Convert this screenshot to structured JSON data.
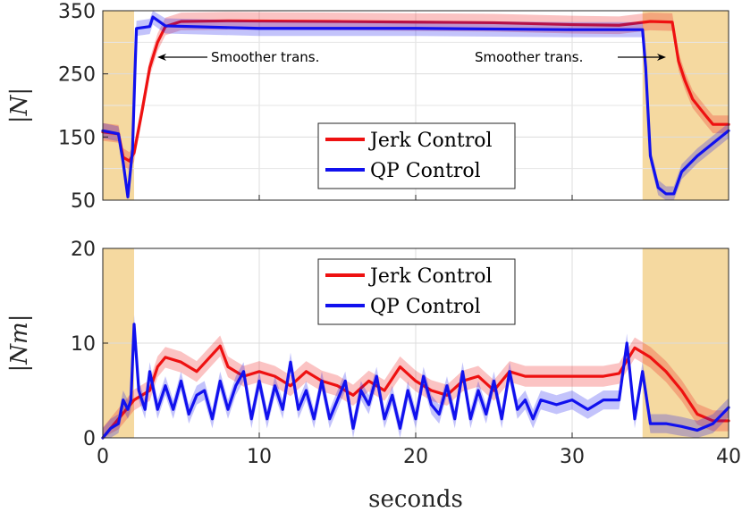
{
  "chart_data": [
    {
      "type": "line",
      "ylabel": "|N|",
      "ylim": [
        50,
        350
      ],
      "xlim": [
        0,
        40
      ],
      "yticks": [
        "50",
        "150",
        "250",
        "350"
      ],
      "ytick_values": [
        50,
        150,
        250,
        350
      ],
      "grid": true,
      "shaded_regions": [
        [
          0,
          2
        ],
        [
          34.5,
          40
        ]
      ],
      "legend": {
        "placement": "center-bottom",
        "entries": [
          "Jerk Control",
          "QP Control"
        ]
      },
      "annotations": [
        {
          "text": "Smoother trans.",
          "arrow_to_x": 3.5,
          "arrow_to_y": 305
        },
        {
          "text": "Smoother trans.",
          "arrow_to_x": 36.6,
          "arrow_to_y": 305
        }
      ],
      "series": [
        {
          "name": "Jerk Control",
          "color": "#ee1111",
          "x": [
            0,
            1,
            1.3,
            1.7,
            2,
            2.5,
            3,
            3.5,
            4,
            5,
            8,
            15,
            20,
            25,
            30,
            33,
            35,
            36.4,
            36.8,
            37.2,
            37.7,
            38.5,
            39,
            40
          ],
          "y": [
            158,
            155,
            118,
            112,
            125,
            190,
            260,
            300,
            325,
            333,
            334,
            333,
            332,
            331,
            328,
            327,
            333,
            332,
            270,
            240,
            210,
            185,
            170,
            170
          ]
        },
        {
          "name": "QP Control",
          "color": "#1111ee",
          "x": [
            0,
            1,
            1.3,
            1.6,
            1.9,
            2.05,
            2.15,
            3,
            3.2,
            4,
            10,
            20,
            30,
            34.5,
            34.7,
            35,
            35.5,
            36,
            36.5,
            37,
            38,
            39,
            40
          ],
          "y": [
            160,
            155,
            110,
            55,
            130,
            250,
            322,
            325,
            340,
            326,
            322,
            322,
            320,
            320,
            260,
            120,
            70,
            60,
            60,
            95,
            120,
            140,
            160
          ]
        }
      ]
    },
    {
      "type": "line",
      "ylabel": "|Nm|",
      "xlabel": "seconds",
      "ylim": [
        0,
        20
      ],
      "xlim": [
        0,
        40
      ],
      "yticks": [
        "0",
        "10",
        "20"
      ],
      "ytick_values": [
        0,
        10,
        20
      ],
      "xticks": [
        "0",
        "10",
        "20",
        "30",
        "40"
      ],
      "xtick_values": [
        0,
        10,
        20,
        30,
        40
      ],
      "grid": true,
      "shaded_regions": [
        [
          0,
          2
        ],
        [
          34.5,
          40
        ]
      ],
      "legend": {
        "placement": "top-center",
        "entries": [
          "Jerk Control",
          "QP Control"
        ]
      },
      "series": [
        {
          "name": "Jerk Control",
          "color": "#ee1111",
          "x": [
            0,
            1,
            2,
            3,
            3.5,
            4,
            5,
            6,
            7.5,
            8,
            9,
            10,
            11,
            12,
            13,
            14,
            15,
            16,
            17,
            18,
            19,
            20,
            21,
            22,
            23,
            24,
            25,
            26,
            27,
            28,
            30,
            32,
            33,
            34,
            35,
            36,
            37,
            38,
            39,
            40
          ],
          "y": [
            0,
            2,
            4,
            5,
            7.5,
            8.5,
            8,
            7,
            9.7,
            7.5,
            6.5,
            7,
            6.5,
            5.5,
            7,
            6,
            5.5,
            4.5,
            6,
            5,
            7.5,
            6,
            5,
            4.5,
            6,
            6.5,
            5,
            7,
            6.5,
            6.5,
            6.5,
            6.5,
            6.8,
            9.5,
            8.5,
            7,
            5,
            2.5,
            1.8,
            1.8
          ]
        },
        {
          "name": "QP Control",
          "color": "#1111ee",
          "x": [
            0,
            0.5,
            1,
            1.3,
            1.6,
            1.8,
            2,
            2.3,
            2.7,
            3,
            3.5,
            4,
            4.5,
            5,
            5.5,
            6,
            6.5,
            7,
            7.5,
            8,
            8.5,
            9,
            9.5,
            10,
            10.5,
            11,
            11.5,
            12,
            12.5,
            13,
            13.5,
            14,
            14.5,
            15,
            15.5,
            16,
            16.5,
            17,
            17.5,
            18,
            18.5,
            19,
            19.5,
            20,
            20.5,
            21,
            21.5,
            22,
            22.5,
            23,
            23.5,
            24,
            24.5,
            25,
            25.5,
            26,
            26.5,
            27,
            27.5,
            28,
            29,
            30,
            31,
            32,
            33,
            33.5,
            34,
            34.5,
            35,
            36,
            37,
            38,
            39,
            40
          ],
          "y": [
            0,
            1,
            1.5,
            4,
            3,
            4,
            12,
            5,
            3,
            7,
            3,
            5.5,
            3,
            6,
            2.5,
            4.5,
            5,
            2,
            6,
            3,
            5.5,
            7,
            2,
            6,
            2,
            5.5,
            3,
            8,
            3,
            5,
            2,
            6,
            2,
            4,
            6,
            1,
            5,
            3.5,
            6.5,
            2,
            4.5,
            1,
            5,
            2,
            6.5,
            3.5,
            2.5,
            5.5,
            2,
            7,
            2,
            5,
            2.5,
            6,
            2,
            7,
            3,
            4,
            2,
            4,
            3.5,
            4,
            3,
            4,
            4,
            10,
            2,
            7,
            1.5,
            1.5,
            1.2,
            0.8,
            1.5,
            3.2
          ]
        }
      ]
    }
  ]
}
